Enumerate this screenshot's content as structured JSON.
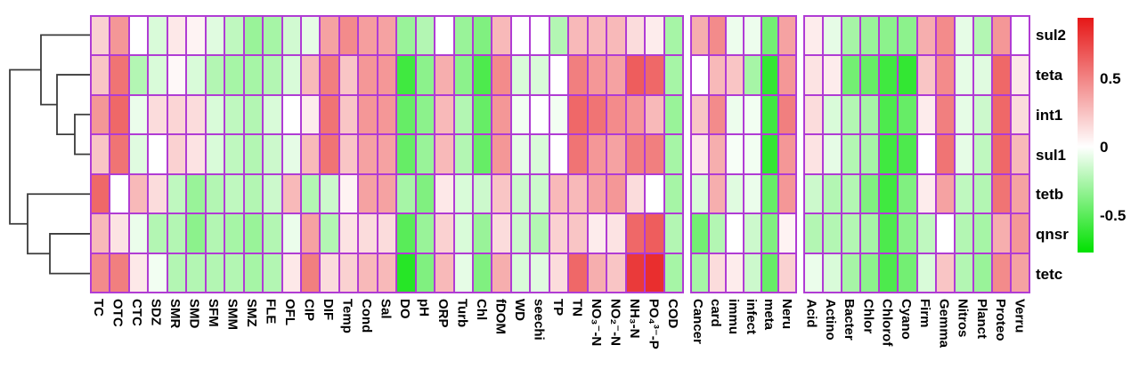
{
  "chart_data": {
    "type": "heatmap",
    "title": "",
    "rows": [
      "sul2",
      "teta",
      "int1",
      "sul1",
      "tetb",
      "qnsr",
      "tetc"
    ],
    "column_groups": [
      {
        "name": "antibiotics-and-environment",
        "columns": [
          "TC",
          "OTC",
          "CTC",
          "SDZ",
          "SMR",
          "SMD",
          "SFM",
          "SMM",
          "SMZ",
          "FLE",
          "OFL",
          "CIP",
          "DIF",
          "Temp",
          "Cond",
          "Sal",
          "DO",
          "pH",
          "ORP",
          "Turb",
          "Chl",
          "fDOM",
          "WD",
          "seechi",
          "TP",
          "TN",
          "NO₃⁻-N",
          "NO₂⁻-N",
          "NH₃-N",
          "PO₄³⁻-P",
          "COD"
        ]
      },
      {
        "name": "functions",
        "columns": [
          "Cancer",
          "card",
          "immu",
          "infect",
          "meta",
          "Neru"
        ]
      },
      {
        "name": "taxa",
        "columns": [
          "Acid",
          "Actino",
          "Bacter",
          "Chlor",
          "Chlorof",
          "Cyano",
          "Firm",
          "Gemma",
          "Nitros",
          "Planct",
          "Proteo",
          "Verru"
        ]
      }
    ],
    "values": [
      [
        0.2,
        0.45,
        0,
        -0.15,
        0.1,
        0.05,
        -0.12,
        -0.25,
        -0.4,
        -0.35,
        -0.18,
        -0.1,
        0.4,
        0.5,
        0.42,
        0.4,
        -0.4,
        -0.3,
        0,
        -0.4,
        -0.5,
        0.3,
        0,
        0,
        -0.3,
        0.3,
        0.3,
        0.3,
        0.15,
        0.08,
        -0.35,
        0.35,
        0.5,
        -0.07,
        -0.07,
        -0.55,
        0.4,
        0.08,
        -0.1,
        -0.35,
        -0.4,
        -0.45,
        -0.45,
        0.35,
        0.5,
        -0.1,
        -0.3,
        0.45,
        0
      ],
      [
        0.25,
        0.6,
        -0.3,
        -0.15,
        0.03,
        -0.15,
        -0.3,
        -0.35,
        -0.35,
        -0.3,
        -0.15,
        0.3,
        0.55,
        0.25,
        0.45,
        0.45,
        -0.75,
        -0.45,
        0.35,
        -0.45,
        -0.7,
        0.5,
        -0.15,
        -0.15,
        0,
        0.55,
        0.45,
        0.4,
        0.7,
        0.65,
        -0.35,
        0,
        0.3,
        0.25,
        -0.35,
        -0.8,
        0.45,
        0.12,
        0.08,
        -0.55,
        -0.6,
        -0.75,
        -0.8,
        0.25,
        0.5,
        -0.1,
        -0.12,
        0.65,
        0.1
      ],
      [
        0.45,
        0.65,
        -0.08,
        0.15,
        0.18,
        0.15,
        -0.15,
        -0.25,
        -0.3,
        -0.15,
        0,
        0.08,
        0.6,
        0.25,
        0.45,
        0.45,
        -0.6,
        -0.45,
        0.3,
        -0.3,
        -0.6,
        0.45,
        -0.05,
        0,
        -0.05,
        0.65,
        0.6,
        0.5,
        0.45,
        0.3,
        -0.4,
        0.25,
        0.5,
        -0.07,
        -0.05,
        -0.75,
        0.55,
        0.15,
        -0.15,
        -0.3,
        -0.35,
        -0.7,
        -0.6,
        0.08,
        0.55,
        -0.1,
        -0.2,
        0.65,
        0.15
      ],
      [
        0.25,
        0.6,
        -0.12,
        0,
        0.2,
        0.12,
        -0.15,
        -0.25,
        -0.3,
        -0.2,
        -0.1,
        0.3,
        0.6,
        0.25,
        0.4,
        0.4,
        -0.6,
        -0.4,
        0.3,
        -0.3,
        -0.6,
        0.45,
        -0.1,
        -0.15,
        0,
        0.6,
        0.45,
        0.4,
        0.55,
        0.55,
        -0.35,
        0.1,
        0.35,
        -0.03,
        -0.05,
        -0.8,
        0.45,
        0.12,
        -0.1,
        -0.3,
        -0.35,
        -0.75,
        -0.7,
        0,
        0.6,
        -0.1,
        -0.25,
        0.65,
        0.3
      ],
      [
        0.65,
        0,
        0.3,
        0.15,
        -0.25,
        -0.4,
        -0.3,
        -0.25,
        -0.3,
        -0.2,
        0.3,
        -0.3,
        -0.2,
        0.05,
        0.4,
        0.4,
        -0.35,
        -0.5,
        0.1,
        -0.15,
        -0.2,
        0.25,
        -0.2,
        -0.2,
        0.3,
        0.3,
        0.4,
        0.45,
        0.15,
        0,
        -0.35,
        -0.15,
        0.35,
        -0.12,
        -0.08,
        -0.6,
        0.45,
        -0.2,
        -0.3,
        -0.3,
        -0.5,
        -0.75,
        -0.5,
        0.08,
        0.4,
        -0.25,
        -0.3,
        0.6,
        0.4
      ],
      [
        0.3,
        0.12,
        -0.08,
        -0.3,
        -0.3,
        -0.45,
        -0.3,
        -0.35,
        -0.4,
        -0.3,
        -0.08,
        0.4,
        -0.3,
        0.12,
        0.15,
        0.15,
        -0.65,
        -0.4,
        0.2,
        -0.15,
        -0.4,
        0.15,
        -0.2,
        -0.3,
        0.2,
        0.25,
        0.08,
        0.12,
        0.65,
        0.7,
        -0.3,
        -0.55,
        -0.3,
        0,
        -0.2,
        -0.5,
        0.05,
        -0.3,
        -0.3,
        -0.3,
        -0.35,
        -0.7,
        -0.45,
        -0.25,
        0,
        -0.3,
        -0.35,
        0.35,
        0.45
      ],
      [
        0.5,
        0.55,
        0.1,
        -0.05,
        -0.3,
        -0.3,
        -0.3,
        -0.3,
        -0.35,
        -0.3,
        0.1,
        0.55,
        0.15,
        0.2,
        0.3,
        0.3,
        -0.85,
        -0.5,
        0.3,
        -0.1,
        -0.5,
        0.35,
        -0.15,
        -0.12,
        0.15,
        0.65,
        0.35,
        0.25,
        0.85,
        0.9,
        -0.35,
        -0.35,
        0.15,
        0.08,
        -0.2,
        -0.6,
        0.2,
        -0.08,
        -0.15,
        -0.35,
        -0.45,
        -0.7,
        -0.55,
        -0.15,
        0.25,
        -0.3,
        -0.4,
        0.5,
        0.4
      ]
    ],
    "colorscale": {
      "min": -1,
      "max": 1,
      "max_color": "#e61717",
      "mid_color": "#ffffff",
      "min_color": "#00e100",
      "ticks": [
        {
          "label": "0.5",
          "value": 0.5
        },
        {
          "label": "0",
          "value": 0
        },
        {
          "label": "-0.5",
          "value": -0.5
        }
      ]
    },
    "grid_color": "#b03cd4",
    "dendrogram": {
      "line_color": "#3b3b3b",
      "merges": [
        {
          "id": "m1",
          "a": "int1",
          "b": "sul1",
          "depth": 0.815
        },
        {
          "id": "m2",
          "a": "teta",
          "b": "m1",
          "depth": 0.598
        },
        {
          "id": "m3",
          "a": "sul2",
          "b": "m2",
          "depth": 0.402
        },
        {
          "id": "m4",
          "a": "qnsr",
          "b": "tetc",
          "depth": 0.511
        },
        {
          "id": "m5",
          "a": "tetb",
          "b": "m4",
          "depth": 0.239
        },
        {
          "id": "m6",
          "a": "m3",
          "b": "m5",
          "depth": 0.022
        }
      ]
    },
    "legend_position": "right",
    "grid": true
  }
}
